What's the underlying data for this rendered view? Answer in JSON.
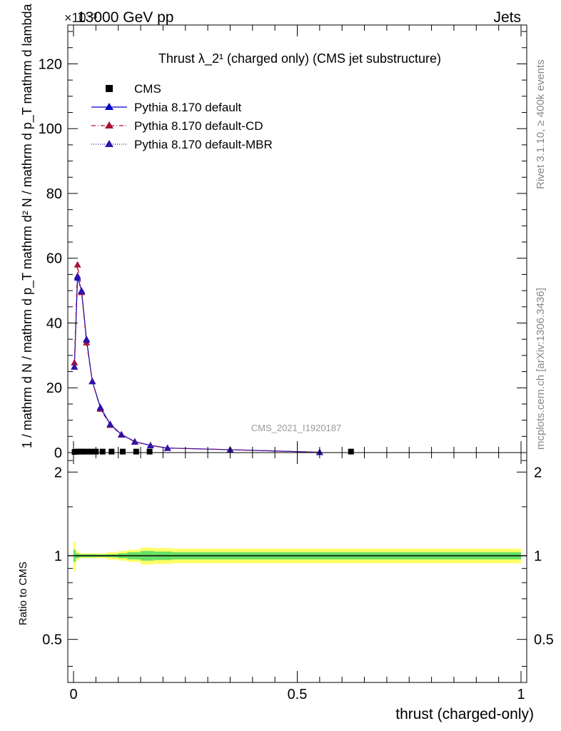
{
  "header": {
    "energy": "13000 GeV pp",
    "process": "Jets",
    "scale_marker": "×10⁻³"
  },
  "side_labels": {
    "rivet": "Rivet 3.1.10, ≥ 400k events",
    "mcplots": "mcplots.cern.ch [arXiv:1306.3436]"
  },
  "watermark": "CMS_2021_I1920187",
  "chart_data": [
    {
      "type": "line",
      "title": "Thrust λ_2¹ (charged only) (CMS jet substructure)",
      "ylabel": "1 / mathrm d N / mathrm d p_T mathrm d² N / mathrm d p_T mathrm d lambda",
      "xlabel": "thrust (charged-only)",
      "xlim": [
        0,
        1
      ],
      "ylim": [
        0,
        132
      ],
      "y_ticks": [
        0,
        20,
        40,
        60,
        80,
        100,
        120
      ],
      "y_tick_labels": [
        "0",
        "20",
        "40",
        "60",
        "80",
        "100",
        "120"
      ],
      "legend_position": "top-left",
      "legend": [
        {
          "name": "CMS",
          "color": "#000000",
          "marker": "square",
          "dash": ""
        },
        {
          "name": "Pythia 8.170 default",
          "color": "#0000cc",
          "marker": "triangle",
          "dash": ""
        },
        {
          "name": "Pythia 8.170 default-CD",
          "color": "#aa1133",
          "marker": "triangle",
          "dash": "6,3,1,3"
        },
        {
          "name": "Pythia 8.170 default-MBR",
          "color": "#3311aa",
          "marker": "triangle",
          "dash": "1,2"
        }
      ],
      "series": [
        {
          "name": "CMS",
          "x": [
            0.0025,
            0.0085,
            0.015,
            0.022,
            0.03,
            0.04,
            0.05,
            0.065,
            0.085,
            0.11,
            0.14,
            0.17,
            0.62
          ],
          "y": [
            0.2,
            0.3,
            0.3,
            0.3,
            0.3,
            0.3,
            0.3,
            0.3,
            0.3,
            0.3,
            0.3,
            0.3,
            0.3
          ]
        },
        {
          "name": "Pythia 8.170 default",
          "x": [
            0.002,
            0.009,
            0.018,
            0.029,
            0.042,
            0.06,
            0.082,
            0.107,
            0.137,
            0.172,
            0.21,
            0.35,
            0.55
          ],
          "y": [
            26.5,
            54,
            50,
            35,
            22,
            14,
            8.8,
            5.6,
            3.4,
            2.2,
            1.4,
            0.9,
            0.1
          ]
        },
        {
          "name": "Pythia 8.170 default-CD",
          "x": [
            0.002,
            0.009,
            0.018,
            0.029,
            0.042,
            0.06,
            0.082,
            0.107,
            0.137,
            0.172,
            0.21,
            0.35,
            0.55
          ],
          "y": [
            27.8,
            58,
            49.5,
            34,
            22,
            13.5,
            8.5,
            5.5,
            3.3,
            2.2,
            1.4,
            0.9,
            0.1
          ]
        },
        {
          "name": "Pythia 8.170 default-MBR",
          "x": [
            0.002,
            0.009,
            0.018,
            0.029,
            0.042,
            0.06,
            0.082,
            0.107,
            0.137,
            0.172,
            0.21,
            0.35,
            0.55
          ],
          "y": [
            26.5,
            54.5,
            49.8,
            34.8,
            22,
            13.8,
            8.7,
            5.6,
            3.4,
            2.2,
            1.4,
            0.9,
            0.1
          ]
        }
      ]
    },
    {
      "type": "line",
      "title": "",
      "ylabel": "Ratio to CMS",
      "xlabel": "thrust (charged-only)",
      "xlim": [
        0,
        1
      ],
      "ylim": [
        0.35,
        2.35
      ],
      "log_y": true,
      "x_ticks": [
        0,
        0.5,
        1
      ],
      "x_tick_labels": [
        "0",
        "0.5",
        "1"
      ],
      "y_ticks": [
        0.5,
        1,
        2
      ],
      "y_tick_labels": [
        "0.5",
        "1",
        "2"
      ],
      "reference_line": 1,
      "uncertainty_bands": {
        "x_edges": [
          0,
          0.005,
          0.012,
          0.025,
          0.05,
          0.075,
          0.1,
          0.12,
          0.15,
          0.18,
          0.22,
          1.0
        ],
        "stat_half_width": [
          0.05,
          0.02,
          0.012,
          0.012,
          0.01,
          0.012,
          0.02,
          0.03,
          0.04,
          0.035,
          0.03
        ],
        "total_half_width": [
          0.12,
          0.04,
          0.02,
          0.02,
          0.02,
          0.03,
          0.04,
          0.05,
          0.07,
          0.065,
          0.06
        ],
        "stat_color": "#66e066",
        "total_color": "#ffff66"
      }
    }
  ]
}
